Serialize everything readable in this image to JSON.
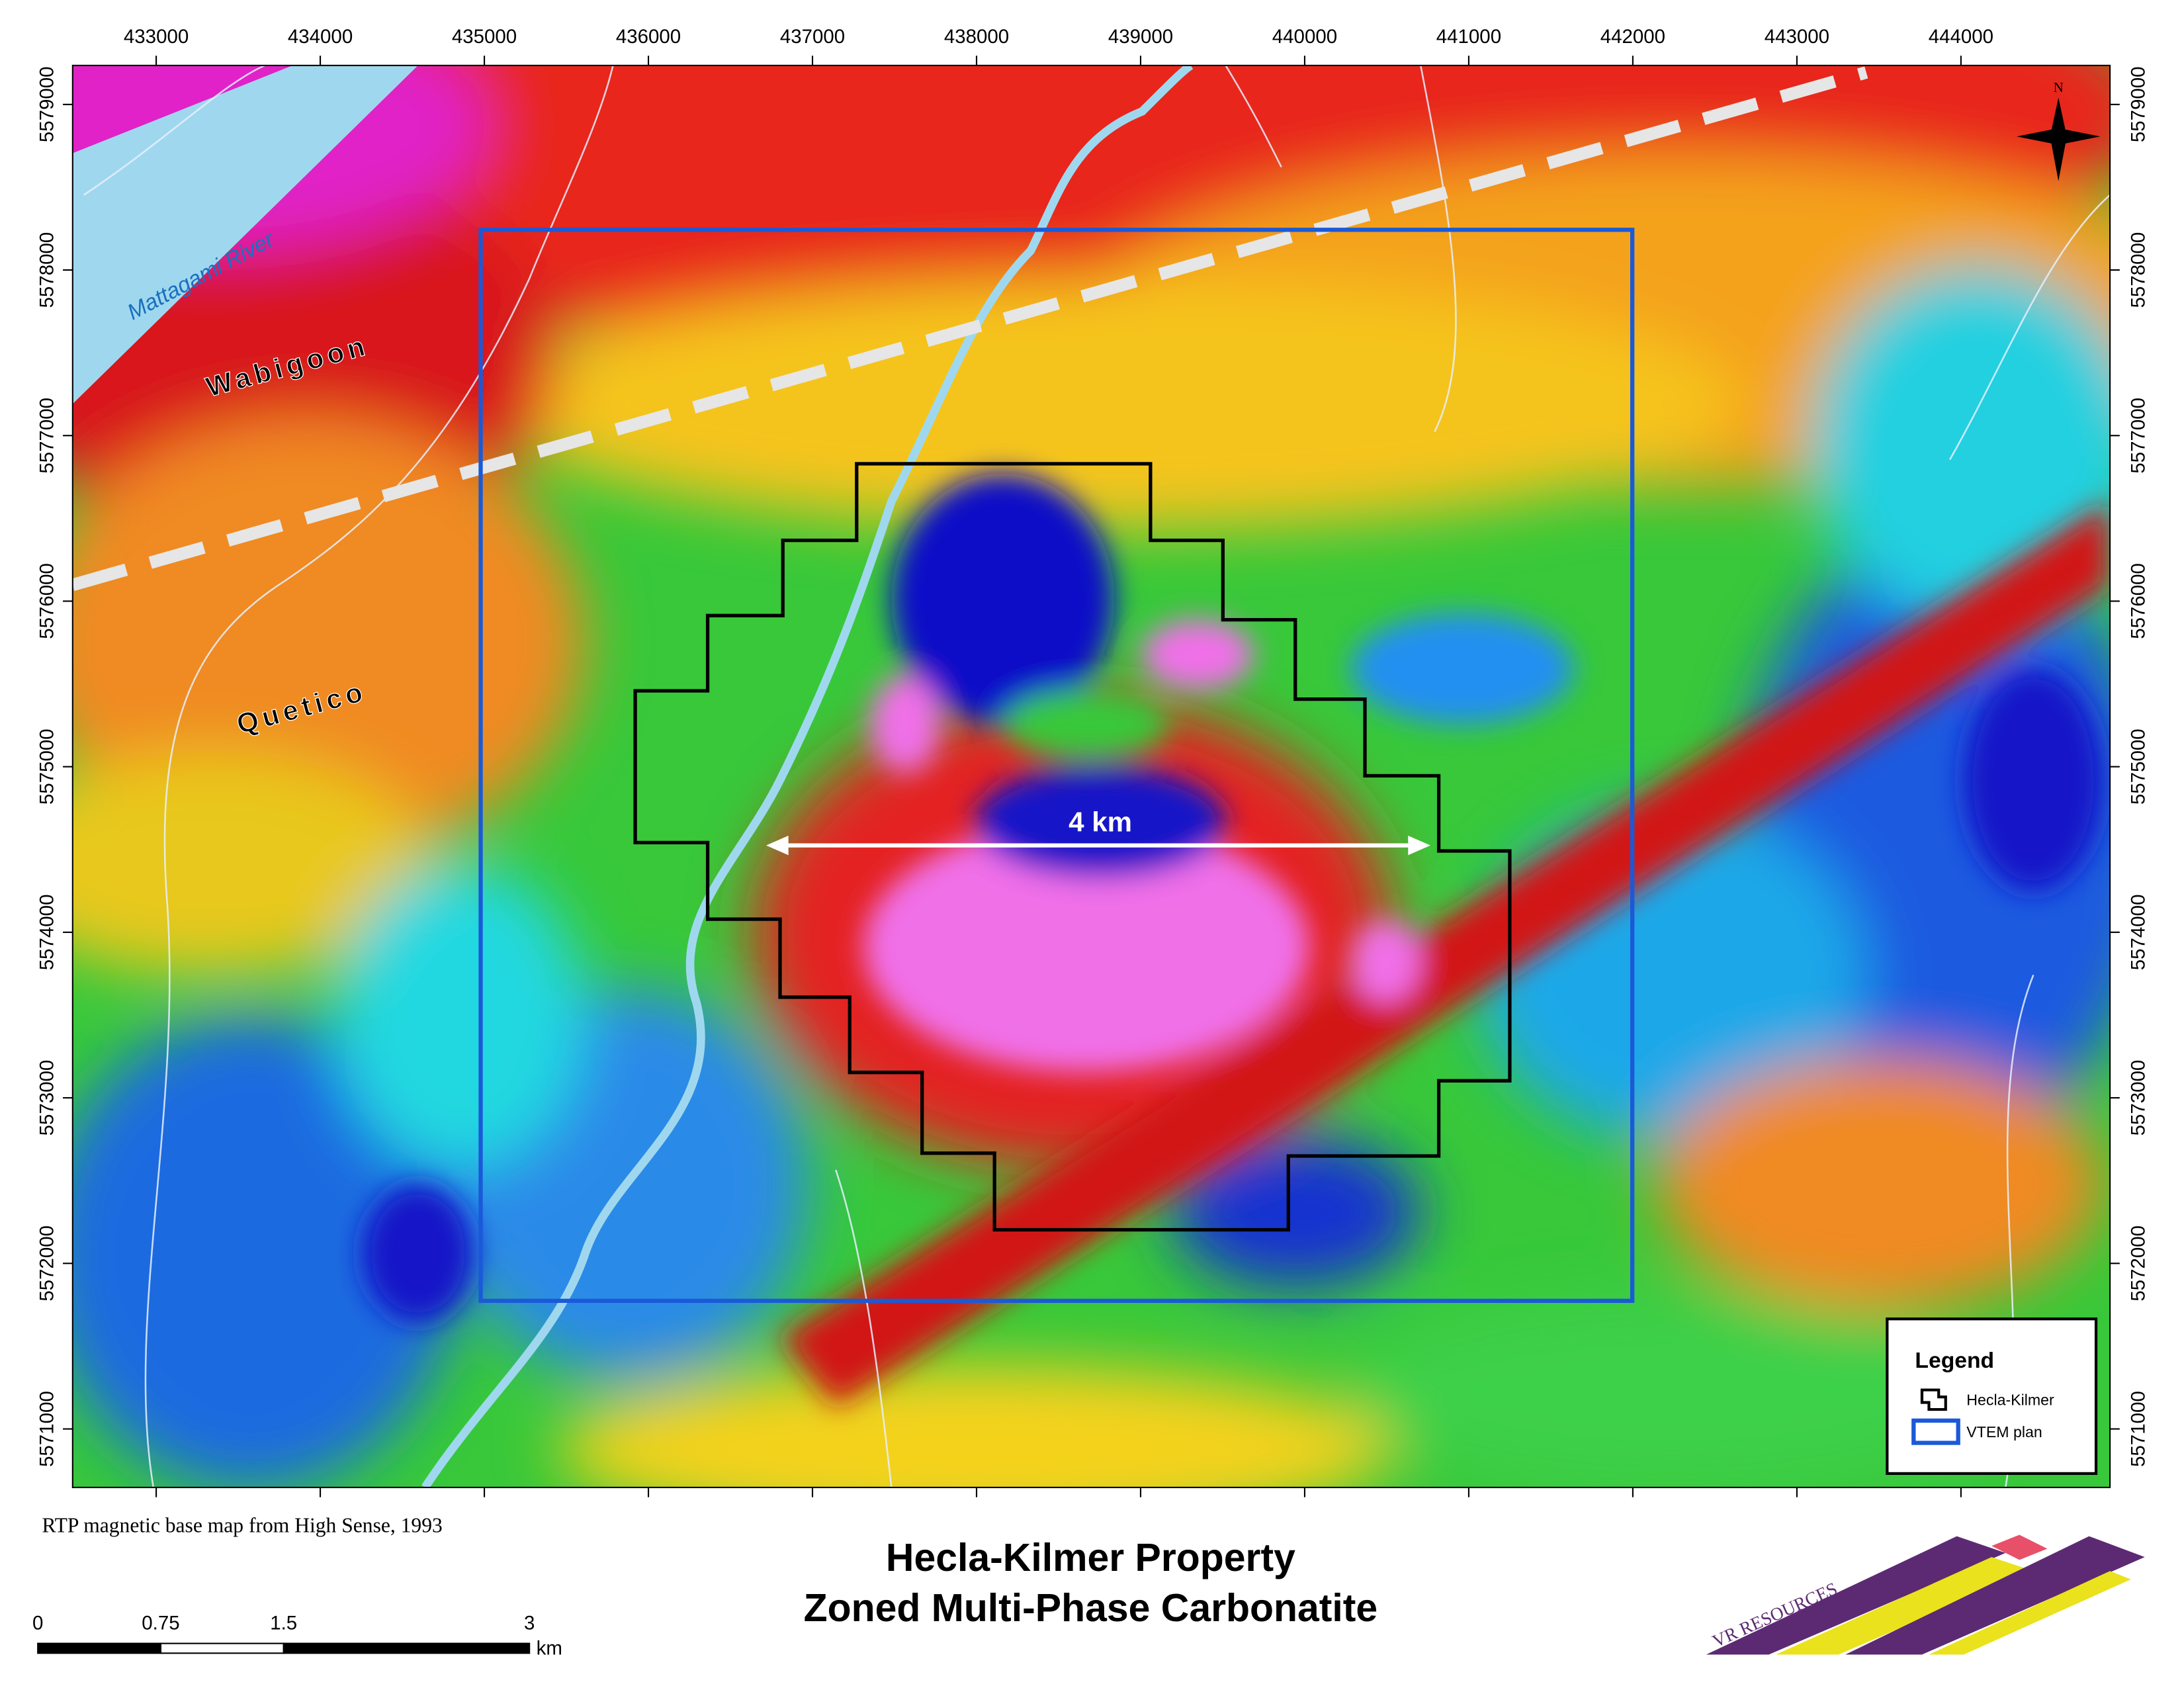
{
  "map": {
    "x_ticks": [
      433000,
      434000,
      435000,
      436000,
      437000,
      438000,
      439000,
      440000,
      441000,
      442000,
      443000,
      444000
    ],
    "y_ticks": [
      5579000,
      5578000,
      5577000,
      5576000,
      5575000,
      5574000,
      5573000,
      5572000,
      5571000
    ],
    "labels": {
      "river": "Mattagami River",
      "north_terrane": "Wabigoon",
      "south_terrane": "Quetico",
      "distance": "4 km",
      "north": "N"
    },
    "legend": {
      "title": "Legend",
      "items": [
        "Hecla-Kilmer",
        "VTEM plan"
      ]
    },
    "source": "RTP magnetic base map from High Sense, 1993",
    "title": [
      "Hecla-Kilmer Property",
      "Zoned Multi-Phase Carbonatite"
    ],
    "scale_bar": {
      "labels": [
        0,
        0.75,
        1.5,
        3
      ],
      "unit": "km"
    },
    "logo": "VR RESOURCES"
  }
}
